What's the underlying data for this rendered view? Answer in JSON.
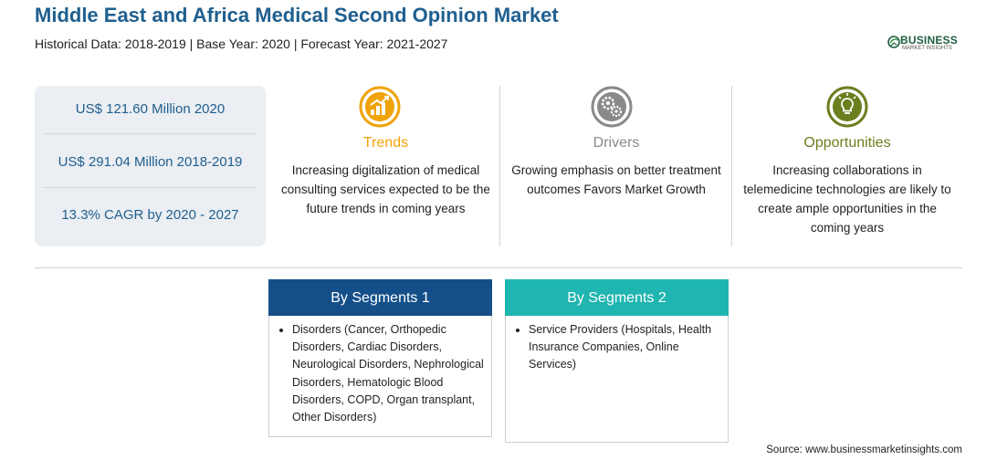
{
  "header": {
    "title": "Middle East and Africa Medical Second Opinion Market",
    "subtitle": "Historical Data: 2018-2019 | Base Year: 2020 | Forecast Year: 2021-2027"
  },
  "logo": {
    "wordmark": "BUSINESS",
    "tagline": "MARKET INSIGHTS",
    "icon": "globe-leaf-icon"
  },
  "stats": [
    "US$ 121.60 Million 2020",
    "US$ 291.04 Million 2018-2019",
    "13.3% CAGR by 2020 - 2027"
  ],
  "columns": [
    {
      "heading": "Trends",
      "icon": "growth-chart-icon",
      "color": "#f0a30a",
      "body": "Increasing digitalization of medical consulting services expected to be the future trends in coming years"
    },
    {
      "heading": "Drivers",
      "icon": "gears-icon",
      "color": "#8a8a8a",
      "body": "Growing emphasis on better treatment outcomes Favors Market Growth"
    },
    {
      "heading": "Opportunities",
      "icon": "lightbulb-icon",
      "color": "#6b7f1e",
      "body": "Increasing collaborations in telemedicine technologies are likely to create ample opportunities in the coming years"
    }
  ],
  "segments": [
    {
      "title": "By Segments 1",
      "color": "#154f8a",
      "items": [
        "Disorders (Cancer, Orthopedic Disorders, Cardiac Disorders, Neurological Disorders, Nephrological Disorders, Hematologic Blood Disorders, COPD, Organ transplant, Other Disorders)"
      ]
    },
    {
      "title": "By Segments 2",
      "color": "#1fb5b0",
      "items": [
        "Service Providers (Hospitals, Health Insurance Companies, Online Services)"
      ]
    }
  ],
  "source": "Source: www.businessmarketinsights.com"
}
